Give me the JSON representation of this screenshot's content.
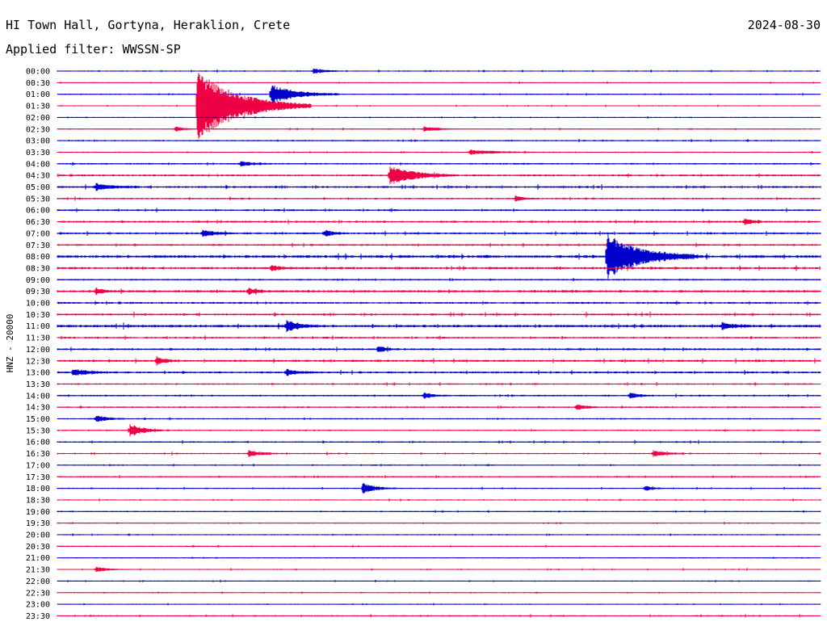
{
  "header": {
    "station": "HI Town Hall, Gortyna, Heraklion, Crete",
    "date": "2024-08-30",
    "filter": "Applied filter: WWSSN-SP"
  },
  "chart_data": {
    "type": "line",
    "title": "HI Town Hall, Gortyna, Heraklion, Crete",
    "subtitle": "Applied filter: WWSSN-SP",
    "ylabel": "HNZ - 20000",
    "row_labels": [
      "00:00",
      "00:30",
      "01:00",
      "01:30",
      "02:00",
      "02:30",
      "03:00",
      "03:30",
      "04:00",
      "04:30",
      "05:00",
      "05:30",
      "06:00",
      "06:30",
      "07:00",
      "07:30",
      "08:00",
      "08:30",
      "09:00",
      "09:30",
      "10:00",
      "10:30",
      "11:00",
      "11:30",
      "12:00",
      "12:30",
      "13:00",
      "13:30",
      "14:00",
      "14:30",
      "15:00",
      "15:30",
      "16:00",
      "16:30",
      "17:00",
      "17:30",
      "18:00",
      "18:30",
      "19:00",
      "19:30",
      "20:00",
      "20:30",
      "21:00",
      "21:30",
      "22:00",
      "22:30",
      "23:00",
      "23:30"
    ],
    "series_colors": [
      "#0000cc",
      "#ee0044"
    ],
    "noise_levels": [
      0.6,
      0.5,
      0.6,
      0.5,
      0.5,
      0.6,
      0.7,
      0.6,
      0.8,
      1.0,
      1.0,
      0.8,
      0.9,
      1.0,
      1.0,
      0.9,
      1.4,
      1.2,
      0.8,
      1.2,
      1.0,
      1.0,
      1.3,
      0.9,
      1.0,
      1.1,
      1.0,
      0.8,
      0.8,
      0.8,
      0.7,
      0.7,
      0.7,
      0.7,
      0.6,
      0.7,
      0.6,
      0.6,
      0.6,
      0.6,
      0.6,
      0.6,
      0.5,
      0.5,
      0.5,
      0.5,
      0.5,
      0.7
    ],
    "events": [
      {
        "row": 0,
        "pos": 0.335,
        "amp": 3,
        "dur": 0.015
      },
      {
        "row": 2,
        "pos": 0.28,
        "amp": 12,
        "dur": 0.03
      },
      {
        "row": 3,
        "pos": 0.183,
        "amp": 45,
        "dur": 0.05
      },
      {
        "row": 5,
        "pos": 0.155,
        "amp": 3,
        "dur": 0.01
      },
      {
        "row": 5,
        "pos": 0.48,
        "amp": 3,
        "dur": 0.015
      },
      {
        "row": 7,
        "pos": 0.54,
        "amp": 3,
        "dur": 0.03
      },
      {
        "row": 8,
        "pos": 0.24,
        "amp": 3,
        "dur": 0.015
      },
      {
        "row": 9,
        "pos": 0.435,
        "amp": 12,
        "dur": 0.03
      },
      {
        "row": 10,
        "pos": 0.05,
        "amp": 4,
        "dur": 0.02
      },
      {
        "row": 11,
        "pos": 0.6,
        "amp": 3,
        "dur": 0.01
      },
      {
        "row": 13,
        "pos": 0.9,
        "amp": 4,
        "dur": 0.01
      },
      {
        "row": 14,
        "pos": 0.19,
        "amp": 4,
        "dur": 0.015
      },
      {
        "row": 14,
        "pos": 0.35,
        "amp": 4,
        "dur": 0.01
      },
      {
        "row": 16,
        "pos": 0.72,
        "amp": 28,
        "dur": 0.04
      },
      {
        "row": 17,
        "pos": 0.28,
        "amp": 4,
        "dur": 0.01
      },
      {
        "row": 19,
        "pos": 0.25,
        "amp": 4,
        "dur": 0.01
      },
      {
        "row": 19,
        "pos": 0.05,
        "amp": 3,
        "dur": 0.01
      },
      {
        "row": 22,
        "pos": 0.3,
        "amp": 7,
        "dur": 0.015
      },
      {
        "row": 22,
        "pos": 0.87,
        "amp": 4,
        "dur": 0.015
      },
      {
        "row": 24,
        "pos": 0.42,
        "amp": 4,
        "dur": 0.01
      },
      {
        "row": 25,
        "pos": 0.13,
        "amp": 5,
        "dur": 0.01
      },
      {
        "row": 26,
        "pos": 0.02,
        "amp": 4,
        "dur": 0.02
      },
      {
        "row": 26,
        "pos": 0.3,
        "amp": 4,
        "dur": 0.015
      },
      {
        "row": 28,
        "pos": 0.48,
        "amp": 4,
        "dur": 0.01
      },
      {
        "row": 28,
        "pos": 0.75,
        "amp": 4,
        "dur": 0.01
      },
      {
        "row": 29,
        "pos": 0.68,
        "amp": 4,
        "dur": 0.01
      },
      {
        "row": 30,
        "pos": 0.05,
        "amp": 4,
        "dur": 0.015
      },
      {
        "row": 31,
        "pos": 0.095,
        "amp": 8,
        "dur": 0.015
      },
      {
        "row": 33,
        "pos": 0.25,
        "amp": 4,
        "dur": 0.015
      },
      {
        "row": 33,
        "pos": 0.78,
        "amp": 4,
        "dur": 0.015
      },
      {
        "row": 36,
        "pos": 0.4,
        "amp": 7,
        "dur": 0.015
      },
      {
        "row": 36,
        "pos": 0.77,
        "amp": 3,
        "dur": 0.01
      },
      {
        "row": 43,
        "pos": 0.05,
        "amp": 3,
        "dur": 0.015
      }
    ]
  }
}
